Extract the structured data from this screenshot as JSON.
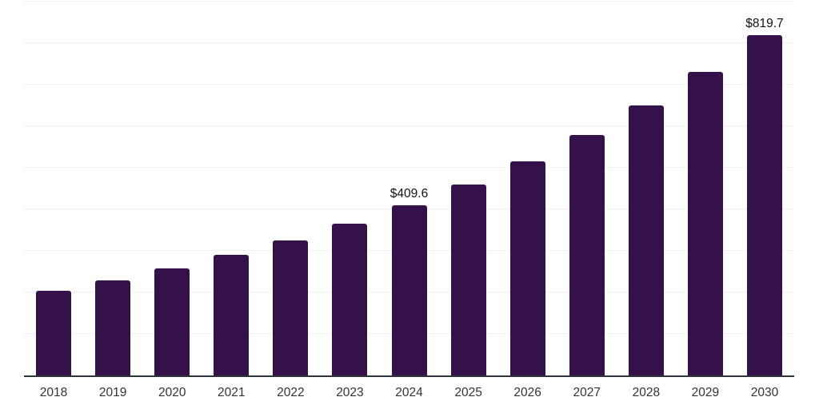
{
  "chart_data": {
    "type": "bar",
    "title": "",
    "xlabel": "",
    "ylabel": "",
    "categories": [
      "2018",
      "2019",
      "2020",
      "2021",
      "2022",
      "2023",
      "2024",
      "2025",
      "2026",
      "2027",
      "2028",
      "2029",
      "2030"
    ],
    "values": [
      204.7,
      229.8,
      258.0,
      289.6,
      325.1,
      364.9,
      409.6,
      459.8,
      516.1,
      579.3,
      650.3,
      729.9,
      819.7
    ],
    "data_labels": [
      "",
      "",
      "",
      "",
      "",
      "",
      "$409.6",
      "",
      "",
      "",
      "",
      "",
      "$819.7"
    ],
    "ylim": [
      0,
      900
    ],
    "gridline_interval": 100,
    "grid": "horizontal",
    "legend": "none",
    "colors": {
      "bar": "#35114A",
      "axis_line": "#303338",
      "gridline": "#f2f2f2",
      "data_label_text": "#111111",
      "tick_text": "#333333",
      "background": "#ffffff"
    }
  }
}
